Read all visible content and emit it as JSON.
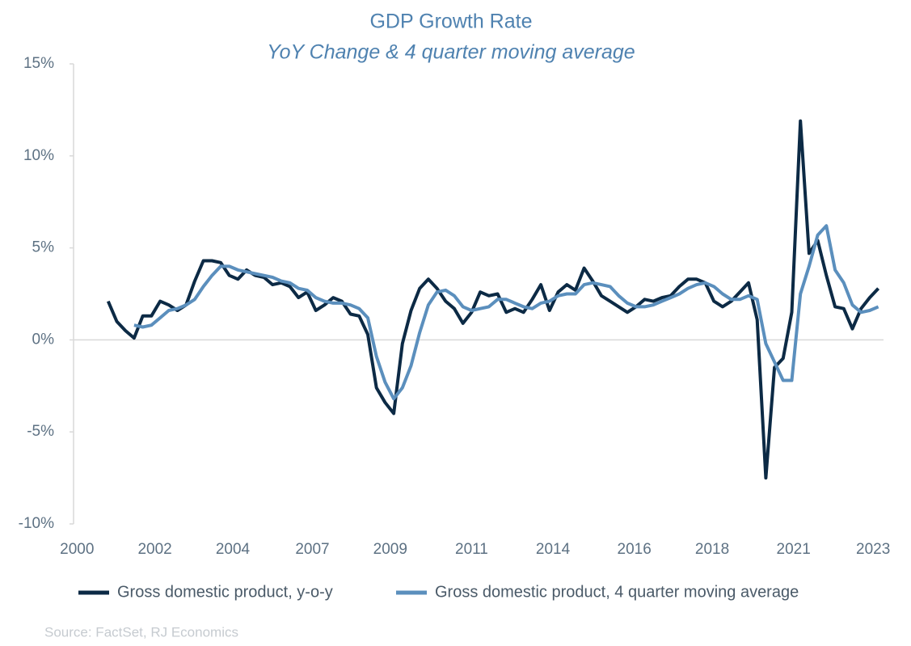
{
  "chart_data": {
    "type": "line",
    "title": "GDP Growth Rate",
    "subtitle": "YoY Change & 4 quarter moving average",
    "source": "Source: FactSet, RJ Economics",
    "x": [
      2001,
      2001.25,
      2001.5,
      2001.75,
      2002,
      2002.25,
      2002.5,
      2002.75,
      2003,
      2003.25,
      2003.5,
      2003.75,
      2004,
      2004.25,
      2004.5,
      2004.75,
      2005,
      2005.25,
      2005.5,
      2005.75,
      2006,
      2006.25,
      2006.5,
      2006.75,
      2007,
      2007.25,
      2007.5,
      2007.75,
      2008,
      2008.25,
      2008.5,
      2008.75,
      2009,
      2009.25,
      2009.5,
      2009.75,
      2010,
      2010.25,
      2010.5,
      2010.75,
      2011,
      2011.25,
      2011.5,
      2011.75,
      2012,
      2012.25,
      2012.5,
      2012.75,
      2013,
      2013.25,
      2013.5,
      2013.75,
      2014,
      2014.25,
      2014.5,
      2014.75,
      2015,
      2015.25,
      2015.5,
      2015.75,
      2016,
      2016.25,
      2016.5,
      2016.75,
      2017,
      2017.25,
      2017.5,
      2017.75,
      2018,
      2018.25,
      2018.5,
      2018.75,
      2019,
      2019.25,
      2019.5,
      2019.75,
      2020,
      2020.25,
      2020.5,
      2020.75,
      2021,
      2021.25,
      2021.5,
      2021.75,
      2022,
      2022.25,
      2022.5,
      2022.75,
      2023,
      2023.25
    ],
    "series": [
      {
        "name": "Gross domestic product, y-o-y",
        "color": "#0c2a45",
        "values": [
          2.1,
          1.0,
          0.5,
          0.1,
          1.3,
          1.3,
          2.1,
          1.9,
          1.6,
          1.9,
          3.2,
          4.3,
          4.3,
          4.2,
          3.5,
          3.3,
          3.8,
          3.5,
          3.4,
          3.0,
          3.1,
          2.9,
          2.3,
          2.6,
          1.6,
          1.9,
          2.3,
          2.1,
          1.4,
          1.3,
          0.3,
          -2.6,
          -3.4,
          -4.0,
          -0.2,
          1.6,
          2.8,
          3.3,
          2.8,
          2.1,
          1.7,
          0.9,
          1.5,
          2.6,
          2.4,
          2.5,
          1.5,
          1.7,
          1.5,
          2.2,
          3.0,
          1.6,
          2.6,
          3.0,
          2.7,
          3.9,
          3.2,
          2.4,
          2.1,
          1.8,
          1.5,
          1.8,
          2.2,
          2.1,
          2.3,
          2.4,
          2.9,
          3.3,
          3.3,
          3.1,
          2.1,
          1.8,
          2.1,
          2.6,
          3.1,
          1.1,
          -7.5,
          -1.5,
          -1.0,
          1.5,
          11.9,
          4.7,
          5.4,
          3.5,
          1.8,
          1.7,
          0.6,
          1.7,
          2.3,
          2.8
        ]
      },
      {
        "name": "Gross domestic product, 4 quarter moving average",
        "color": "#5b8fbd",
        "values": [
          null,
          null,
          null,
          0.8,
          0.7,
          0.8,
          1.2,
          1.6,
          1.7,
          1.9,
          2.2,
          2.9,
          3.5,
          4.0,
          4.0,
          3.8,
          3.7,
          3.6,
          3.5,
          3.4,
          3.2,
          3.1,
          2.8,
          2.7,
          2.3,
          2.1,
          2.0,
          2.0,
          1.9,
          1.7,
          1.2,
          -0.9,
          -2.3,
          -3.2,
          -2.6,
          -1.4,
          0.4,
          1.9,
          2.6,
          2.7,
          2.4,
          1.8,
          1.6,
          1.7,
          1.8,
          2.2,
          2.2,
          2.0,
          1.8,
          1.7,
          2.0,
          2.1,
          2.4,
          2.5,
          2.5,
          3.0,
          3.1,
          3.0,
          2.9,
          2.4,
          2.0,
          1.8,
          1.8,
          1.9,
          2.1,
          2.3,
          2.5,
          2.8,
          3.0,
          3.1,
          2.9,
          2.5,
          2.2,
          2.2,
          2.4,
          2.2,
          -0.2,
          -1.2,
          -2.2,
          -2.2,
          2.5,
          4.0,
          5.7,
          6.2,
          3.8,
          3.1,
          1.9,
          1.5,
          1.6,
          1.8
        ]
      }
    ],
    "xlim": [
      2000,
      2023.4
    ],
    "xticks": [
      {
        "value": 2000.1,
        "label": "2000"
      },
      {
        "value": 2002.35,
        "label": "2002"
      },
      {
        "value": 2004.6,
        "label": "2004"
      },
      {
        "value": 2006.9,
        "label": "2007"
      },
      {
        "value": 2009.15,
        "label": "2009"
      },
      {
        "value": 2011.5,
        "label": "2011"
      },
      {
        "value": 2013.85,
        "label": "2014"
      },
      {
        "value": 2016.2,
        "label": "2016"
      },
      {
        "value": 2018.45,
        "label": "2018"
      },
      {
        "value": 2020.8,
        "label": "2021"
      },
      {
        "value": 2023.1,
        "label": "2023"
      }
    ],
    "ylim": [
      -10,
      15
    ],
    "yticks": [
      {
        "value": 15,
        "label": "15%"
      },
      {
        "value": 10,
        "label": "10%"
      },
      {
        "value": 5,
        "label": "5%"
      },
      {
        "value": 0,
        "label": "0%"
      },
      {
        "value": -5,
        "label": "-5%"
      },
      {
        "value": -10,
        "label": "-10%"
      }
    ],
    "grid": false,
    "legend": "bottom"
  }
}
